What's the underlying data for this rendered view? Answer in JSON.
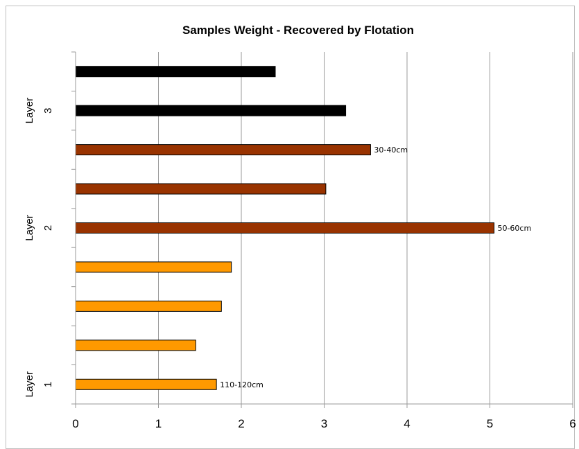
{
  "chart_data": {
    "type": "bar",
    "orientation": "horizontal",
    "title": "Samples Weight - Recovered by Flotation",
    "xlabel": "",
    "ylabel": "",
    "xlim": [
      0,
      6
    ],
    "x_ticks": [
      "0",
      "1",
      "2",
      "3",
      "4",
      "5",
      "6"
    ],
    "grid": "vertical",
    "legend": "none",
    "groups": [
      {
        "line1": "Layer",
        "line2": "1"
      },
      {
        "line1": "Layer",
        "line2": "2"
      },
      {
        "line1": "Layer",
        "line2": "3"
      }
    ],
    "bars": [
      {
        "value": 1.7,
        "group": 0,
        "color": "#ff9900",
        "label": "110-120cm"
      },
      {
        "value": 1.45,
        "group": 0,
        "color": "#ff9900",
        "label": ""
      },
      {
        "value": 1.76,
        "group": 0,
        "color": "#ff9900",
        "label": ""
      },
      {
        "value": 1.88,
        "group": 0,
        "color": "#ff9900",
        "label": ""
      },
      {
        "value": 5.05,
        "group": 1,
        "color": "#993300",
        "label": "50-60cm"
      },
      {
        "value": 3.02,
        "group": 1,
        "color": "#993300",
        "label": ""
      },
      {
        "value": 3.56,
        "group": 1,
        "color": "#993300",
        "label": "30-40cm"
      },
      {
        "value": 3.26,
        "group": 2,
        "color": "#000000",
        "label": ""
      },
      {
        "value": 2.41,
        "group": 2,
        "color": "#000000",
        "label": ""
      }
    ]
  }
}
